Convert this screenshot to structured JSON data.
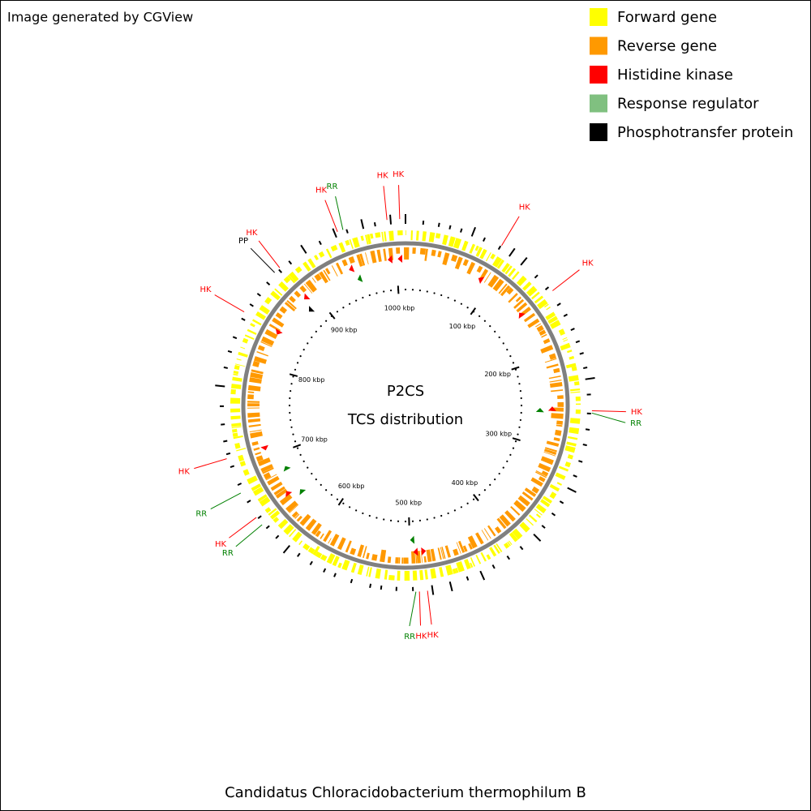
{
  "title": "Image generated by CGView",
  "legend": [
    {
      "label": "Forward gene",
      "color": "#ffff00"
    },
    {
      "label": "Reverse gene",
      "color": "#ff9900"
    },
    {
      "label": "Histidine kinase",
      "color": "#ff0000"
    },
    {
      "label": "Response regulator",
      "color": "#80c080"
    },
    {
      "label": "Phosphotransfer protein",
      "color": "#000000"
    }
  ],
  "center": [
    "P2CS",
    "TCS distribution"
  ],
  "organism": "Candidatus Chloracidobacterium thermophilum B",
  "genome": {
    "range": [
      0,
      1010
    ],
    "ticks": [
      {
        "value": 100,
        "label": "100 kbp"
      },
      {
        "value": 200,
        "label": "200 kbp"
      },
      {
        "value": 300,
        "label": "300 kbp"
      },
      {
        "value": 400,
        "label": "400 kbp"
      },
      {
        "value": 500,
        "label": "500 kbp"
      },
      {
        "value": 600,
        "label": "600 kbp"
      },
      {
        "value": 700,
        "label": "700 kbp"
      },
      {
        "value": 800,
        "label": "800 kbp"
      },
      {
        "value": 900,
        "label": "900 kbp"
      },
      {
        "value": 1000,
        "label": "1000 kbp"
      }
    ]
  },
  "feature_colors": {
    "HK": "#ff0000",
    "RR": "#008000",
    "PP": "#000000"
  },
  "features": [
    {
      "label": "HK",
      "position": 994,
      "strand": "-"
    },
    {
      "label": "HK",
      "position": 1005,
      "strand": "-"
    },
    {
      "label": "HK",
      "position": 87,
      "strand": "-"
    },
    {
      "label": "HK",
      "position": 146,
      "strand": "-"
    },
    {
      "label": "HK",
      "position": 257,
      "strand": "-"
    },
    {
      "label": "RR",
      "position": 259,
      "strand": "-"
    },
    {
      "label": "HK",
      "position": 486,
      "strand": "-"
    },
    {
      "label": "HK",
      "position": 493,
      "strand": "+"
    },
    {
      "label": "RR",
      "position": 496,
      "strand": "+"
    },
    {
      "label": "RR",
      "position": 646,
      "strand": "+"
    },
    {
      "label": "HK",
      "position": 654,
      "strand": "+"
    },
    {
      "label": "RR",
      "position": 679,
      "strand": "+"
    },
    {
      "label": "HK",
      "position": 711,
      "strand": "-"
    },
    {
      "label": "HK",
      "position": 842,
      "strand": "-"
    },
    {
      "label": "PP",
      "position": 885,
      "strand": "-"
    },
    {
      "label": "HK",
      "position": 891,
      "strand": "-"
    },
    {
      "label": "HK",
      "position": 950,
      "strand": "-"
    },
    {
      "label": "RR",
      "position": 955,
      "strand": "-"
    }
  ]
}
